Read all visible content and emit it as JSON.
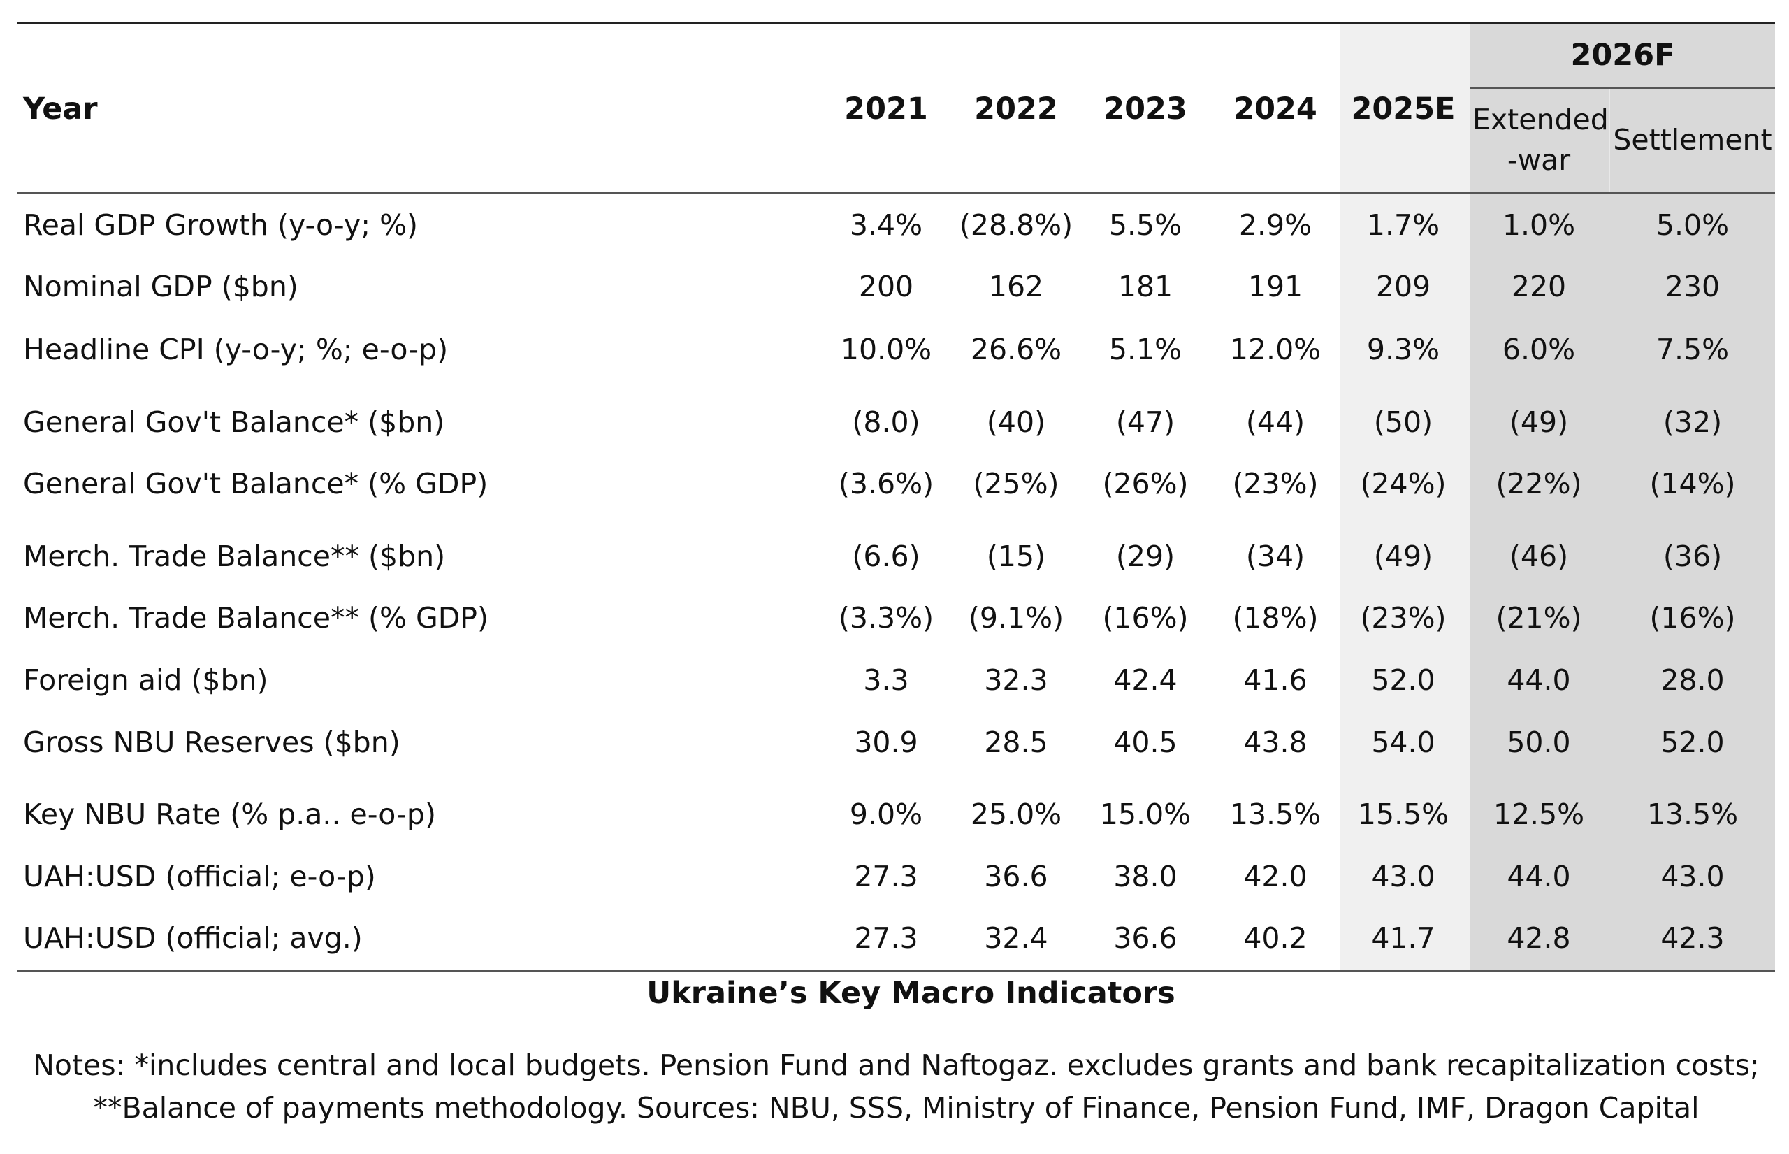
{
  "header": {
    "year": "Year",
    "years": [
      "2021",
      "2022",
      "2023",
      "2024",
      "2025E"
    ],
    "forecast": "2026F",
    "scenarios": [
      "Extended\n-war",
      "Settlement"
    ]
  },
  "rows": [
    [
      "Real GDP Growth (y-o-y; %)",
      "3.4%",
      "(28.8%)",
      "5.5%",
      "2.9%",
      "1.7%",
      "1.0%",
      "5.0%"
    ],
    [
      "Nominal GDP ($bn)",
      "200",
      "162",
      "181",
      "191",
      "209",
      "220",
      "230"
    ],
    [
      "Headline CPI (y-o-y; %; e-o-p)",
      "10.0%",
      "26.6%",
      "5.1%",
      "12.0%",
      "9.3%",
      "6.0%",
      "7.5%"
    ],
    [
      "General Gov't Balance* ($bn)",
      "(8.0)",
      "(40)",
      "(47)",
      "(44)",
      "(50)",
      "(49)",
      "(32)"
    ],
    [
      "General Gov't Balance* (% GDP)",
      "(3.6%)",
      "(25%)",
      "(26%)",
      "(23%)",
      "(24%)",
      "(22%)",
      "(14%)"
    ],
    [
      "Merch. Trade Balance** ($bn)",
      "(6.6)",
      "(15)",
      "(29)",
      "(34)",
      "(49)",
      "(46)",
      "(36)"
    ],
    [
      "Merch. Trade Balance** (% GDP)",
      "(3.3%)",
      "(9.1%)",
      "(16%)",
      "(18%)",
      "(23%)",
      "(21%)",
      "(16%)"
    ],
    [
      "Foreign aid ($bn)",
      "3.3",
      "32.3",
      "42.4",
      "41.6",
      "52.0",
      "44.0",
      "28.0"
    ],
    [
      "Gross NBU Reserves ($bn)",
      "30.9",
      "28.5",
      "40.5",
      "43.8",
      "54.0",
      "50.0",
      "52.0"
    ],
    [
      "Key NBU Rate (% p.a.. e-o-p)",
      "9.0%",
      "25.0%",
      "15.0%",
      "13.5%",
      "15.5%",
      "12.5%",
      "13.5%"
    ],
    [
      "UAH:USD (official; e-o-p)",
      "27.3",
      "36.6",
      "38.0",
      "42.0",
      "43.0",
      "44.0",
      "43.0"
    ],
    [
      "UAH:USD (official; avg.)",
      "27.3",
      "32.4",
      "36.6",
      "40.2",
      "41.7",
      "42.8",
      "42.3"
    ]
  ],
  "caption": "Ukraine’s Key Macro Indicators",
  "notes": [
    "Notes: *includes central and local budgets. Pension Fund and Naftogaz. excludes grants and bank recapitalization costs;",
    "**Balance of payments methodology. Sources: NBU, SSS, Ministry of Finance, Pension Fund, IMF, Dragon Capital"
  ]
}
